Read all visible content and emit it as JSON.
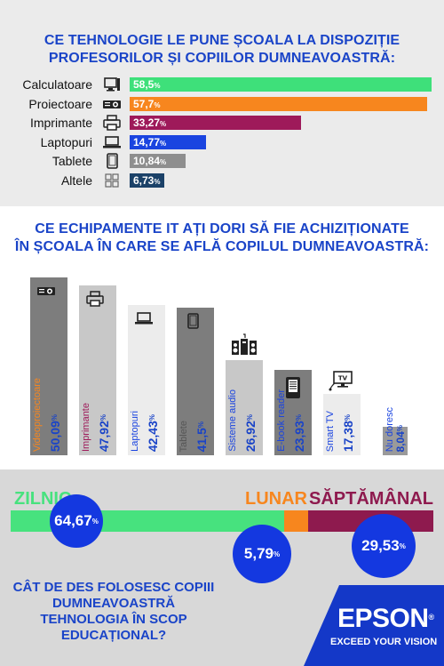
{
  "section1": {
    "title_line1": "CE TEHNOLOGIE LE PUNE ȘCOALA LA DISPOZIȚIE",
    "title_line2": "PROFESORILOR ȘI COPIILOR DUMNEAVOASTRĂ:"
  },
  "section2": {
    "title_line1": "CE ECHIPAMENTE IT AȚI DORI SĂ FIE ACHIZIȚIONATE",
    "title_line2": "ÎN ȘCOALA ÎN CARE SE AFLĂ COPILUL DUMNEAVOASTRĂ:"
  },
  "section3": {
    "question_line1": "CÂT DE DES FOLOSESC COPIII",
    "question_line2": "DUMNEAVOASTRĂ",
    "question_line3": "TEHNOLOGIA ÎN SCOP",
    "question_line4": "EDUCAȚIONAL?",
    "brand_name": "EPSON",
    "brand_reg": "®",
    "brand_tagline": "EXCEED YOUR VISION"
  },
  "chart_data": [
    {
      "type": "bar",
      "orientation": "horizontal",
      "title": "CE TEHNOLOGIE LE PUNE ȘCOALA LA DISPOZIȚIE PROFESORILOR ȘI COPIILOR DUMNEAVOASTRĂ:",
      "unit": "%",
      "xlim": [
        0,
        58.5
      ],
      "categories": [
        "Calculatoare",
        "Proiectoare",
        "Imprimante",
        "Laptopuri",
        "Tablete",
        "Altele"
      ],
      "values": [
        58.5,
        57.7,
        33.27,
        14.77,
        10.84,
        6.73
      ],
      "value_labels": [
        "58,5",
        "57,7",
        "33,27",
        "14,77",
        "10,84",
        "6,73"
      ],
      "icons": [
        "desktop-computer-icon",
        "projector-icon",
        "printer-icon",
        "laptop-icon",
        "tablet-icon",
        "grid-apps-icon"
      ],
      "colors": [
        "#3ee07a",
        "#f7861e",
        "#9e1a5a",
        "#1a44e0",
        "#8e8e8e",
        "#1b4168"
      ]
    },
    {
      "type": "bar",
      "orientation": "vertical",
      "title": "CE ECHIPAMENTE IT AȚI DORI SĂ FIE ACHIZIȚIONATE ÎN ȘCOALA ÎN CARE SE AFLĂ COPILUL DUMNEAVOASTRĂ:",
      "unit": "%",
      "ylim": [
        0,
        50.09
      ],
      "categories": [
        "Videoproiectoare",
        "Imprimante",
        "Laptopuri",
        "Tablete",
        "Sisteme audio",
        "E-book reader",
        "Smart TV",
        "Nu doresc"
      ],
      "values": [
        50.09,
        47.92,
        42.43,
        41.5,
        26.92,
        23.93,
        17.38,
        8.04
      ],
      "value_labels": [
        "50,09",
        "47,92",
        "42,43",
        "41,5",
        "26,92",
        "23,93",
        "17,38",
        "8,04"
      ],
      "icons": [
        "projector-icon",
        "printer-icon",
        "laptop-icon",
        "tablet-icon",
        "speakers-icon",
        "ebook-reader-icon",
        "smart-tv-icon",
        ""
      ],
      "colors": [
        "#7d7d7d",
        "#c8c8c8",
        "#ececec",
        "#7d7d7d",
        "#c8c8c8",
        "#7d7d7d",
        "#ececec",
        "#9a9a9a"
      ],
      "label_colors": [
        "#f7861e",
        "#9e1a5a",
        "#1a44e0",
        "#555555",
        "#1a44e0",
        "#1a44e0",
        "#1a44e0",
        "#1a44e0"
      ]
    },
    {
      "type": "bar",
      "orientation": "stacked-horizontal",
      "title": "CÂT DE DES FOLOSESC COPIII DUMNEAVOASTRĂ TEHNOLOGIA ÎN SCOP EDUCAȚIONAL?",
      "unit": "%",
      "categories": [
        "ZILNIC",
        "LUNAR",
        "SĂPTĂMÂNAL"
      ],
      "values": [
        64.67,
        5.79,
        29.53
      ],
      "value_labels": [
        "64,67",
        "5,79",
        "29,53"
      ],
      "colors": [
        "#47e27e",
        "#f7861e",
        "#8e1a4e"
      ]
    }
  ]
}
